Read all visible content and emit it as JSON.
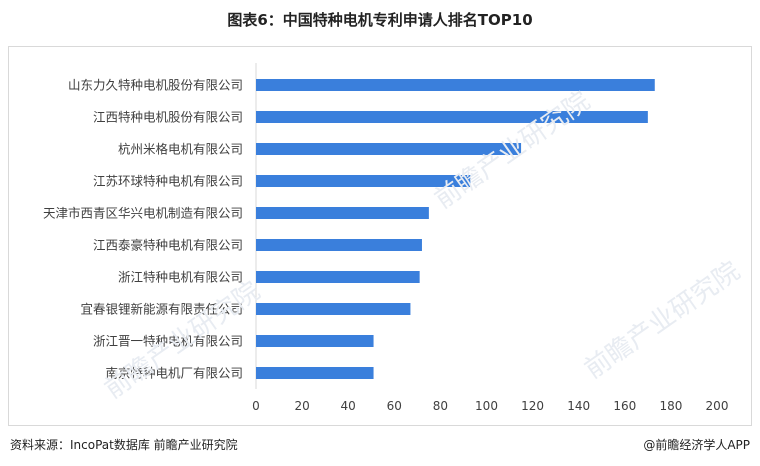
{
  "title": "图表6：中国特种电机专利申请人排名TOP10",
  "footer": {
    "source": "资料来源：IncoPat数据库  前瞻产业研究院",
    "brand": "@前瞻经济学人APP"
  },
  "colors": {
    "bar": "#3a7fdc",
    "axis": "#d9d9d9",
    "text": "#404040"
  },
  "chart_data": {
    "type": "bar",
    "orientation": "horizontal",
    "categories": [
      "山东力久特种电机股份有限公司",
      "江西特种电机股份有限公司",
      "杭州米格电机有限公司",
      "江苏环球特种电机有限公司",
      "天津市西青区华兴电机制造有限公司",
      "江西泰豪特种电机有限公司",
      "浙江特种电机有限公司",
      "宜春银锂新能源有限责任公司",
      "浙江晋一特种电机有限公司",
      "南京特种电机厂有限公司"
    ],
    "values": [
      173,
      170,
      115,
      93,
      75,
      72,
      71,
      67,
      51,
      51
    ],
    "xlim": [
      0,
      200
    ],
    "xticks": [
      0,
      20,
      40,
      60,
      80,
      100,
      120,
      140,
      160,
      180,
      200
    ],
    "grid": false,
    "legend": "none"
  }
}
